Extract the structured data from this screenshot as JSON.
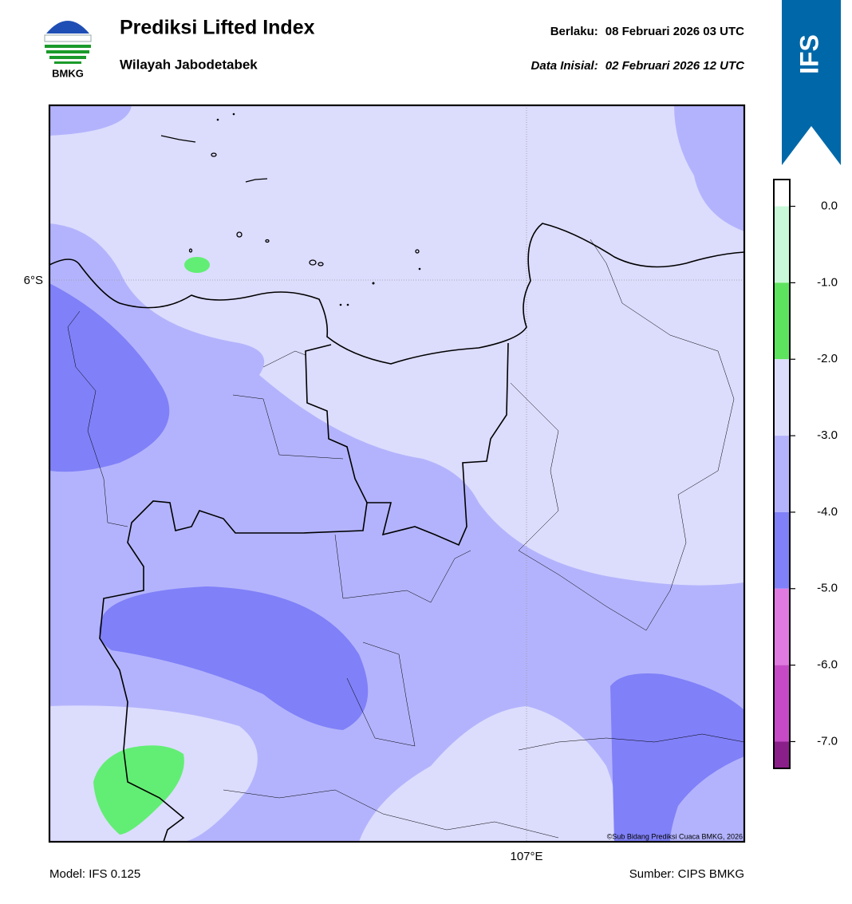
{
  "header": {
    "logo_text": "BMKG",
    "title": "Prediksi Lifted Index",
    "subtitle": "Wilayah Jabodetabek",
    "valid_label": "Berlaku:",
    "valid_time": "08 Februari 2026 03 UTC",
    "init_label": "Data Inisial:",
    "init_time": "02 Februari 2026 12 UTC",
    "badge": "IFS"
  },
  "map": {
    "lat_label": "6°S",
    "lon_label": "107°E",
    "credit": "©Sub Bidang Prediksi Cuaca BMKG, 2026"
  },
  "colorbar": {
    "lim": [
      -7.35,
      0.35
    ],
    "ticks": [
      {
        "value": 0,
        "label": "0.0"
      },
      {
        "value": -1,
        "label": "-1.0"
      },
      {
        "value": -2,
        "label": "-2.0"
      },
      {
        "value": -3,
        "label": "-3.0"
      },
      {
        "value": -4,
        "label": "-4.0"
      },
      {
        "value": -5,
        "label": "-5.0"
      },
      {
        "value": -6,
        "label": "-6.0"
      },
      {
        "value": -7,
        "label": "-7.0"
      }
    ],
    "bands": [
      {
        "from": 0.35,
        "to": 0,
        "color": "#ffffff"
      },
      {
        "from": 0,
        "to": -1,
        "color": "#c8f8d8"
      },
      {
        "from": -1,
        "to": -2,
        "color": "#5ee35e"
      },
      {
        "from": -2,
        "to": -3,
        "color": "#dcdcfd"
      },
      {
        "from": -3,
        "to": -4,
        "color": "#b3b3fd"
      },
      {
        "from": -4,
        "to": -5,
        "color": "#8080f8"
      },
      {
        "from": -5,
        "to": -6,
        "color": "#e07ae0"
      },
      {
        "from": -6,
        "to": -7,
        "color": "#c64ac6"
      },
      {
        "from": -7,
        "to": -7.35,
        "color": "#8a1f8a"
      }
    ]
  },
  "footer": {
    "model": "Model: IFS 0.125",
    "source": "Sumber: CIPS BMKG"
  }
}
